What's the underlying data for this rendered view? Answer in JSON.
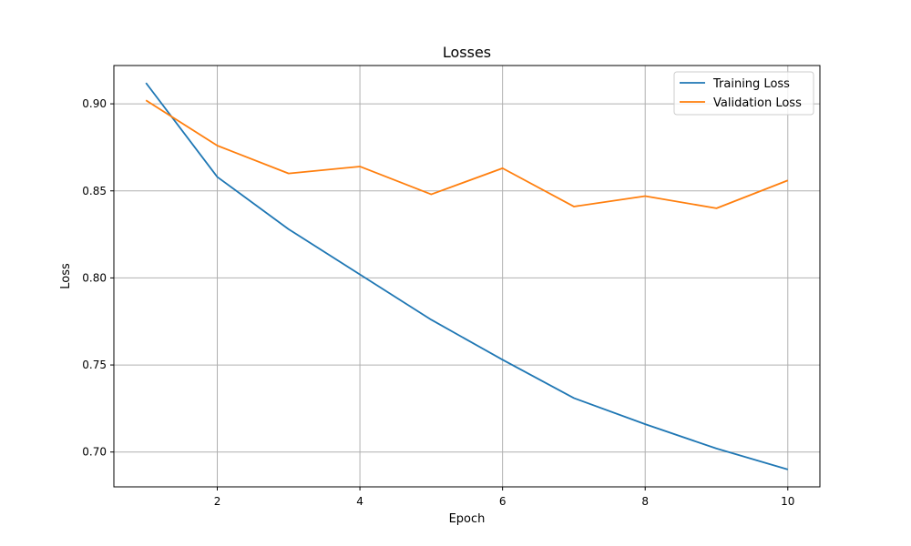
{
  "chart_data": {
    "type": "line",
    "title": "Losses",
    "xlabel": "Epoch",
    "ylabel": "Loss",
    "x": [
      1,
      2,
      3,
      4,
      5,
      6,
      7,
      8,
      9,
      10
    ],
    "xlim": [
      0.55,
      10.45
    ],
    "ylim": [
      0.68,
      0.922
    ],
    "x_ticks": [
      2,
      4,
      6,
      8,
      10
    ],
    "y_ticks": [
      0.7,
      0.75,
      0.8,
      0.85,
      0.9
    ],
    "x_tick_labels": [
      "2",
      "4",
      "6",
      "8",
      "10"
    ],
    "y_tick_labels": [
      "0.70",
      "0.75",
      "0.80",
      "0.85",
      "0.90"
    ],
    "grid": true,
    "legend_position": "top-right",
    "series": [
      {
        "name": "Training Loss",
        "color": "#1f77b4",
        "values": [
          0.912,
          0.858,
          0.828,
          0.802,
          0.776,
          0.753,
          0.731,
          0.716,
          0.702,
          0.69
        ]
      },
      {
        "name": "Validation Loss",
        "color": "#ff7f0e",
        "values": [
          0.902,
          0.876,
          0.86,
          0.864,
          0.848,
          0.863,
          0.841,
          0.847,
          0.84,
          0.856
        ]
      }
    ]
  }
}
